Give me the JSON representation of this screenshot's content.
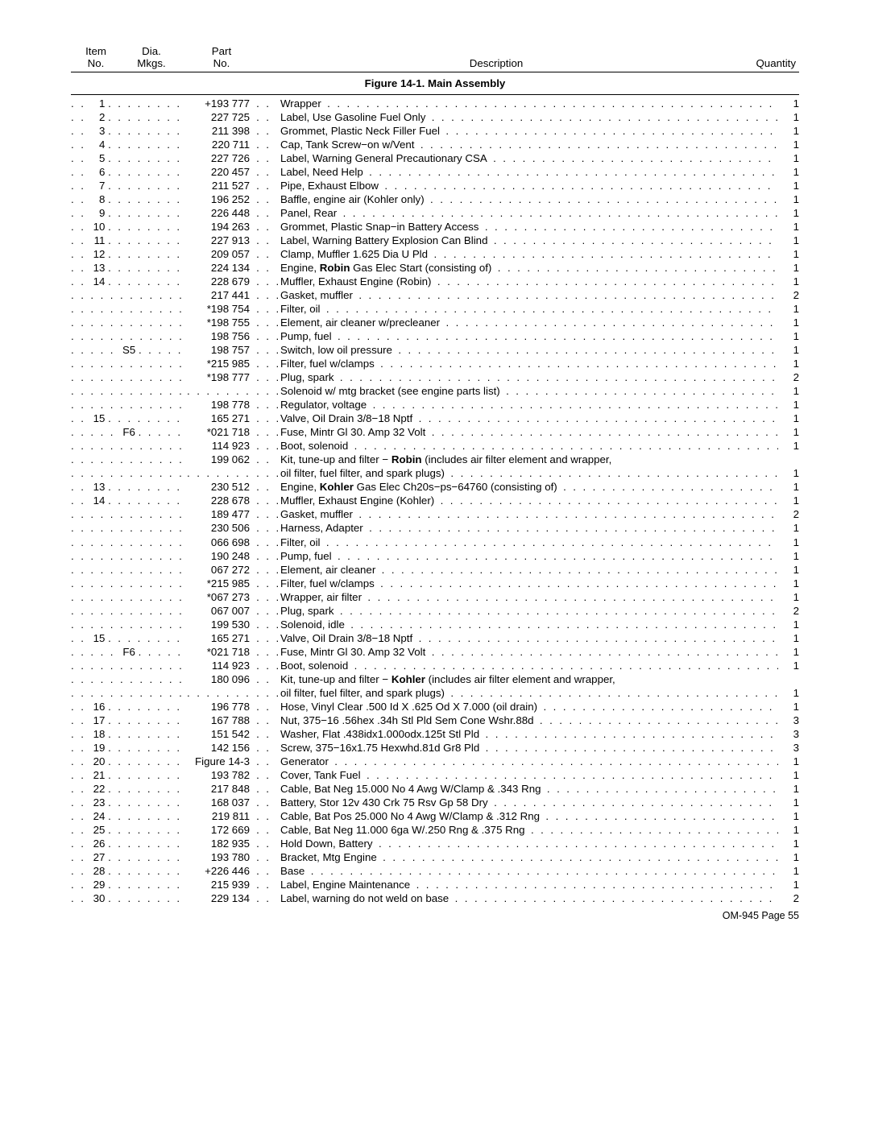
{
  "header": {
    "line1": {
      "item": "Item",
      "dia": "Dia.",
      "part": "Part",
      "desc": "",
      "qty": ""
    },
    "line2": {
      "item": "No.",
      "dia": "Mkgs.",
      "part": "No.",
      "desc": "Description",
      "qty": "Quantity"
    }
  },
  "figure_title": "Figure 14-1. Main Assembly",
  "sep": {
    "two": ". .",
    "three": ". . .",
    "four": ". . . ."
  },
  "rows": [
    {
      "item": "1",
      "dia": "",
      "part": "+193 777",
      "sep": "two",
      "desc": "Wrapper",
      "qty": "1"
    },
    {
      "item": "2",
      "dia": "",
      "part": "227 725",
      "sep": "two",
      "desc": "Label, Use Gasoline Fuel Only",
      "qty": "1"
    },
    {
      "item": "3",
      "dia": "",
      "part": "211 398",
      "sep": "two",
      "desc": "Grommet, Plastic Neck Filler Fuel",
      "qty": "1"
    },
    {
      "item": "4",
      "dia": "",
      "part": "220 711",
      "sep": "two",
      "desc": "Cap, Tank Screw−on w/Vent",
      "qty": "1"
    },
    {
      "item": "5",
      "dia": "",
      "part": "227 726",
      "sep": "two",
      "desc": "Label, Warning General Precautionary CSA",
      "qty": "1"
    },
    {
      "item": "6",
      "dia": "",
      "part": "220 457",
      "sep": "two",
      "desc": "Label, Need Help",
      "qty": "1"
    },
    {
      "item": "7",
      "dia": "",
      "part": "211 527",
      "sep": "two",
      "desc": "Pipe, Exhaust Elbow",
      "qty": "1"
    },
    {
      "item": "8",
      "dia": "",
      "part": "196 252",
      "sep": "two",
      "desc": "Baffle, engine air (Kohler only)",
      "qty": "1"
    },
    {
      "item": "9",
      "dia": "",
      "part": "226 448",
      "sep": "two",
      "desc": "Panel, Rear",
      "qty": "1"
    },
    {
      "item": "10",
      "dia": "",
      "part": "194 263",
      "sep": "two",
      "desc": "Grommet, Plastic Snap−in Battery Access",
      "qty": "1"
    },
    {
      "item": "11",
      "dia": "",
      "part": "227 913",
      "sep": "two",
      "desc": "Label, Warning Battery Explosion Can Blind",
      "qty": "1"
    },
    {
      "item": "12",
      "dia": "",
      "part": "209 057",
      "sep": "two",
      "desc": "Clamp, Muffler 1.625 Dia U Pld",
      "qty": "1"
    },
    {
      "item": "13",
      "dia": "",
      "part": "224 134",
      "sep": "two",
      "desc": "Engine, <b class=\"inline\">Robin</b> Gas Elec Start (consisting of)",
      "qty": "1",
      "html": true
    },
    {
      "item": "14",
      "dia": "",
      "part": "228 679",
      "sep": "four",
      "desc": "Muffler, Exhaust Engine (Robin)",
      "qty": "1"
    },
    {
      "item": "",
      "dia": "",
      "part": "217 441",
      "sep": "four",
      "desc": "Gasket, muffler",
      "qty": "2"
    },
    {
      "item": "",
      "dia": "",
      "part": "*198 754",
      "sep": "four",
      "desc": "Filter, oil",
      "qty": "1"
    },
    {
      "item": "",
      "dia": "",
      "part": "*198 755",
      "sep": "four",
      "desc": "Element, air cleaner w/precleaner",
      "qty": "1"
    },
    {
      "item": "",
      "dia": "",
      "part": "198 756",
      "sep": "four",
      "desc": "Pump, fuel",
      "qty": "1"
    },
    {
      "item": "",
      "dia": "S5",
      "part": "198 757",
      "sep": "four",
      "desc": "Switch, low oil pressure",
      "qty": "1"
    },
    {
      "item": "",
      "dia": "",
      "part": "*215 985",
      "sep": "four",
      "desc": "Filter, fuel w/clamps",
      "qty": "1"
    },
    {
      "item": "",
      "dia": "",
      "part": "*198 777",
      "sep": "four",
      "desc": "Plug, spark",
      "qty": "2"
    },
    {
      "item": "",
      "dia": "",
      "part": "",
      "sep": "four",
      "desc": "Solenoid w/ mtg bracket (see engine parts list)",
      "qty": "1",
      "nopart": true
    },
    {
      "item": "",
      "dia": "",
      "part": "198 778",
      "sep": "four",
      "desc": "Regulator, voltage",
      "qty": "1"
    },
    {
      "item": "15",
      "dia": "",
      "part": "165 271",
      "sep": "four",
      "desc": "Valve, Oil Drain 3/8−18 Nptf",
      "qty": "1"
    },
    {
      "item": "",
      "dia": "F6",
      "part": "*021 718",
      "sep": "four",
      "desc": "Fuse, Mintr Gl 30. Amp 32 Volt",
      "qty": "1"
    },
    {
      "item": "",
      "dia": "",
      "part": "114 923",
      "sep": "four",
      "desc": "Boot, solenoid",
      "qty": "1"
    },
    {
      "item": "",
      "dia": "",
      "part": "199 062",
      "sep": "two",
      "desc": "Kit, tune-up and filter − <b class=\"inline\">Robin</b> (includes air filter element and wrapper,",
      "qty": "",
      "html": true,
      "nodotsright": true
    },
    {
      "item": "",
      "dia": "",
      "part": "",
      "sep": "four",
      "desc": "oil filter, fuel filter, and spark plugs)",
      "qty": "1",
      "nopart": true
    },
    {
      "item": "13",
      "dia": "",
      "part": "230 512",
      "sep": "two",
      "desc": "Engine, <b class=\"inline\">Kohler</b> Gas Elec Ch20s−ps−64760 (consisting of)",
      "qty": "1",
      "html": true
    },
    {
      "item": "14",
      "dia": "",
      "part": "228 678",
      "sep": "four",
      "desc": "Muffler, Exhaust Engine (Kohler)",
      "qty": "1"
    },
    {
      "item": "",
      "dia": "",
      "part": "189 477",
      "sep": "four",
      "desc": "Gasket, muffler",
      "qty": "2"
    },
    {
      "item": "",
      "dia": "",
      "part": "230 506",
      "sep": "four",
      "desc": "Harness, Adapter",
      "qty": "1"
    },
    {
      "item": "",
      "dia": "",
      "part": "066 698",
      "sep": "four",
      "desc": "Filter, oil",
      "qty": "1"
    },
    {
      "item": "",
      "dia": "",
      "part": "190 248",
      "sep": "four",
      "desc": "Pump, fuel",
      "qty": "1"
    },
    {
      "item": "",
      "dia": "",
      "part": "067 272",
      "sep": "four",
      "desc": "Element, air cleaner",
      "qty": "1"
    },
    {
      "item": "",
      "dia": "",
      "part": "*215 985",
      "sep": "four",
      "desc": "Filter, fuel w/clamps",
      "qty": "1"
    },
    {
      "item": "",
      "dia": "",
      "part": "*067 273",
      "sep": "four",
      "desc": "Wrapper, air filter",
      "qty": "1"
    },
    {
      "item": "",
      "dia": "",
      "part": "067 007",
      "sep": "four",
      "desc": "Plug, spark",
      "qty": "2"
    },
    {
      "item": "",
      "dia": "",
      "part": "199 530",
      "sep": "four",
      "desc": "Solenoid, idle",
      "qty": "1"
    },
    {
      "item": "15",
      "dia": "",
      "part": "165 271",
      "sep": "four",
      "desc": "Valve, Oil Drain 3/8−18 Nptf",
      "qty": "1"
    },
    {
      "item": "",
      "dia": "F6",
      "part": "*021 718",
      "sep": "four",
      "desc": "Fuse, Mintr Gl 30. Amp 32 Volt",
      "qty": "1"
    },
    {
      "item": "",
      "dia": "",
      "part": "114 923",
      "sep": "four",
      "desc": "Boot, solenoid",
      "qty": "1"
    },
    {
      "item": "",
      "dia": "",
      "part": "180 096",
      "sep": "two",
      "desc": "Kit, tune-up and filter − <b class=\"inline\">Kohler</b> (includes air filter element and wrapper,",
      "qty": "",
      "html": true,
      "nodotsright": true
    },
    {
      "item": "",
      "dia": "",
      "part": "",
      "sep": "four",
      "desc": "oil filter, fuel filter, and spark plugs)",
      "qty": "1",
      "nopart": true
    },
    {
      "item": "16",
      "dia": "",
      "part": "196 778",
      "sep": "two",
      "desc": "Hose, Vinyl Clear .500 Id X .625 Od X 7.000 (oil drain)",
      "qty": "1"
    },
    {
      "item": "17",
      "dia": "",
      "part": "167 788",
      "sep": "two",
      "desc": "Nut, 375−16 .56hex .34h Stl Pld Sem Cone Wshr.88d",
      "qty": "3"
    },
    {
      "item": "18",
      "dia": "",
      "part": "151 542",
      "sep": "two",
      "desc": "Washer, Flat .438idx1.000odx.125t Stl Pld",
      "qty": "3"
    },
    {
      "item": "19",
      "dia": "",
      "part": "142 156",
      "sep": "two",
      "desc": "Screw, 375−16x1.75 Hexwhd.81d Gr8 Pld",
      "qty": "3"
    },
    {
      "item": "20",
      "dia": "",
      "part": "Figure 14-3",
      "sep": "two",
      "desc": "Generator",
      "qty": "1"
    },
    {
      "item": "21",
      "dia": "",
      "part": "193 782",
      "sep": "two",
      "desc": "Cover, Tank Fuel",
      "qty": "1"
    },
    {
      "item": "22",
      "dia": "",
      "part": "217 848",
      "sep": "two",
      "desc": "Cable, Bat Neg 15.000 No 4 Awg W/Clamp & .343 Rng",
      "qty": "1"
    },
    {
      "item": "23",
      "dia": "",
      "part": "168 037",
      "sep": "two",
      "desc": "Battery, Stor 12v 430 Crk 75 Rsv Gp 58 Dry",
      "qty": "1"
    },
    {
      "item": "24",
      "dia": "",
      "part": "219 811",
      "sep": "two",
      "desc": "Cable, Bat Pos 25.000 No 4 Awg W/Clamp & .312 Rng",
      "qty": "1"
    },
    {
      "item": "25",
      "dia": "",
      "part": "172 669",
      "sep": "two",
      "desc": "Cable, Bat Neg 11.000 6ga W/.250 Rng & .375 Rng",
      "qty": "1"
    },
    {
      "item": "26",
      "dia": "",
      "part": "182 935",
      "sep": "two",
      "desc": "Hold Down, Battery",
      "qty": "1"
    },
    {
      "item": "27",
      "dia": "",
      "part": "193 780",
      "sep": "two",
      "desc": "Bracket, Mtg Engine",
      "qty": "1"
    },
    {
      "item": "28",
      "dia": "",
      "part": "+226 446",
      "sep": "two",
      "desc": "Base",
      "qty": "1"
    },
    {
      "item": "29",
      "dia": "",
      "part": "215 939",
      "sep": "two",
      "desc": "Label, Engine Maintenance",
      "qty": "1"
    },
    {
      "item": "30",
      "dia": "",
      "part": "229 134",
      "sep": "two",
      "desc": "Label, warning do not weld on base",
      "qty": "2"
    }
  ],
  "footer": "OM-945 Page 55",
  "dot_fill": ". . . . . . . . . . . . . . . . . . . . . . . . . . . . . . . . . . . . . . . . . . . . . . . . . . . . . . . . . . . . . . . . . . . . . . . . . . . . . . . . . . . . . . . . . . . . . . . . . . . . . . . . . . . . . . . . . . . . . . . . . . . . . . . ."
}
